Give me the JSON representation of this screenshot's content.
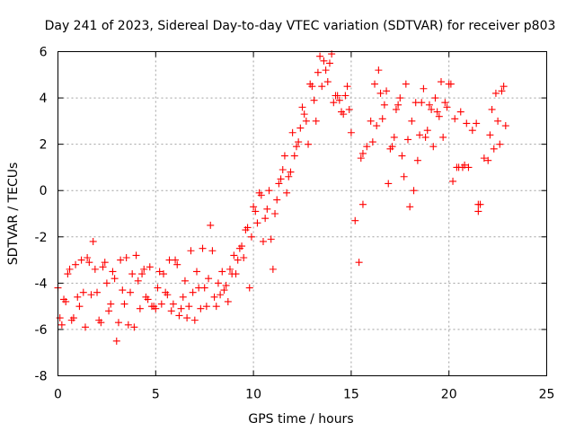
{
  "chart_data": {
    "type": "scatter",
    "title": "Day 241 of 2023, Sidereal Day-to-day VTEC variation (SDTVAR) for receiver p803",
    "xlabel": "GPS time / hours",
    "ylabel": "SDTVAR / TECUs",
    "xlim": [
      0,
      25
    ],
    "ylim": [
      -8,
      6
    ],
    "xticks": [
      "0",
      "5",
      "10",
      "15",
      "20",
      "25"
    ],
    "xtick_values": [
      0,
      5,
      10,
      15,
      20,
      25
    ],
    "yticks": [
      "-8",
      "-6",
      "-4",
      "-2",
      "0",
      "2",
      "4",
      "6"
    ],
    "ytick_values": [
      -8,
      -6,
      -4,
      -2,
      0,
      2,
      4,
      6
    ],
    "grid": true,
    "marker": "+",
    "color": "#ff0000",
    "series": [
      {
        "name": "SDTVAR",
        "x": [
          0.0,
          0.2,
          0.4,
          0.6,
          0.8,
          1.0,
          1.2,
          1.4,
          1.6,
          1.8,
          2.0,
          2.2,
          2.4,
          2.6,
          2.8,
          3.0,
          3.2,
          3.4,
          3.6,
          3.8,
          4.0,
          4.2,
          4.4,
          4.6,
          4.8,
          5.0,
          5.2,
          5.4,
          5.6,
          5.8,
          6.0,
          6.2,
          6.4,
          6.6,
          6.8,
          7.0,
          7.2,
          7.4,
          7.6,
          7.8,
          8.0,
          8.2,
          8.4,
          8.6,
          8.8,
          9.0,
          9.2,
          9.4,
          9.6,
          9.8,
          10.0,
          10.2,
          10.4,
          10.6,
          10.8,
          11.0,
          11.2,
          11.4,
          11.6,
          11.8,
          12.0,
          12.2,
          12.4,
          12.6,
          12.8,
          13.0,
          13.2,
          13.4,
          13.6,
          13.8,
          14.0,
          14.2,
          14.4,
          14.6,
          14.8,
          15.0,
          15.2,
          15.4,
          15.6,
          15.8,
          16.0,
          16.2,
          16.4,
          16.6,
          16.8,
          17.0,
          17.2,
          17.4,
          17.6,
          17.8,
          18.0,
          18.2,
          18.4,
          18.6,
          18.8,
          19.0,
          19.2,
          19.4,
          19.6,
          19.8,
          20.0,
          20.2,
          20.4,
          20.6,
          20.8,
          21.0,
          21.2,
          21.4,
          21.6,
          21.8,
          22.0,
          22.2,
          22.4,
          22.6,
          22.8,
          0.1,
          0.3,
          0.5,
          0.7,
          0.9,
          1.1,
          1.3,
          1.5,
          1.7,
          1.9,
          2.1,
          2.3,
          2.5,
          2.7,
          2.9,
          3.1,
          3.3,
          3.5,
          3.7,
          3.9,
          4.1,
          4.3,
          4.5,
          4.7,
          4.9,
          5.1,
          5.3,
          5.5,
          5.7,
          5.9,
          6.1,
          6.3,
          6.5,
          6.7,
          6.9,
          7.1,
          7.3,
          7.5,
          7.7,
          7.9,
          8.1,
          8.3,
          8.5,
          8.7,
          8.9,
          9.1,
          9.3,
          9.5,
          9.7,
          9.9,
          10.1,
          10.3,
          10.5,
          10.7,
          10.9,
          11.1,
          11.3,
          11.5,
          11.7,
          11.9,
          12.1,
          12.3,
          12.5,
          12.7,
          12.9,
          13.1,
          13.3,
          13.5,
          13.7,
          13.9,
          14.1,
          14.3,
          14.5,
          14.7,
          14.9,
          16.1,
          16.3,
          16.5,
          16.7,
          16.9,
          17.1,
          17.3,
          17.5,
          17.7,
          17.9,
          18.1,
          18.3,
          18.5,
          18.7,
          18.9,
          19.1,
          19.3,
          19.5,
          19.7,
          19.9,
          20.1,
          20.3,
          20.5,
          20.7,
          20.9,
          21.5,
          21.5,
          15.5,
          15.6,
          22.1,
          22.3,
          22.5,
          22.7,
          22.9
        ],
        "y": [
          -4.2,
          -5.8,
          -4.8,
          -3.4,
          -5.5,
          -4.6,
          -3.0,
          -5.9,
          -3.1,
          -2.2,
          -4.4,
          -5.7,
          -3.1,
          -5.2,
          -3.5,
          -6.5,
          -3.0,
          -4.9,
          -5.8,
          -3.6,
          -2.8,
          -5.1,
          -3.4,
          -4.7,
          -5.0,
          -5.1,
          -3.5,
          -3.6,
          -4.5,
          -5.2,
          -3.0,
          -5.4,
          -4.6,
          -5.5,
          -2.6,
          -5.6,
          -4.2,
          -2.5,
          -5.0,
          -1.5,
          -4.6,
          -4.0,
          -3.5,
          -4.1,
          -3.4,
          -2.8,
          -3.0,
          -2.4,
          -1.7,
          -4.2,
          -0.7,
          -1.4,
          -0.2,
          -1.2,
          0.0,
          -3.4,
          -0.4,
          0.5,
          1.5,
          0.6,
          2.5,
          1.9,
          2.7,
          3.3,
          2.0,
          4.5,
          3.0,
          5.8,
          5.6,
          4.7,
          5.9,
          4.1,
          3.9,
          3.3,
          4.5,
          2.5,
          -1.3,
          -3.1,
          -0.6,
          1.9,
          3.0,
          4.6,
          5.2,
          3.1,
          4.3,
          1.8,
          2.3,
          3.7,
          1.5,
          4.6,
          -0.7,
          0.0,
          1.3,
          3.8,
          2.3,
          3.7,
          1.9,
          3.4,
          4.7,
          3.8,
          4.6,
          0.4,
          1.0,
          3.4,
          1.1,
          1.0,
          2.6,
          2.9,
          -0.6,
          1.4,
          1.3,
          3.5,
          4.2,
          2.0,
          4.5,
          -5.5,
          -4.7,
          -3.6,
          -5.6,
          -3.2,
          -5.0,
          -4.4,
          -2.9,
          -4.5,
          -3.4,
          -5.6,
          -3.3,
          -4.0,
          -4.9,
          -3.8,
          -5.7,
          -4.3,
          -2.9,
          -4.4,
          -5.9,
          -3.9,
          -3.6,
          -4.6,
          -3.3,
          -5.0,
          -4.2,
          -4.9,
          -4.4,
          -3.0,
          -4.9,
          -3.2,
          -5.1,
          -3.9,
          -5.0,
          -4.4,
          -3.5,
          -5.1,
          -4.2,
          -3.8,
          -2.6,
          -5.0,
          -4.5,
          -4.3,
          -4.8,
          -3.6,
          -3.6,
          -2.5,
          -2.9,
          -1.6,
          -2.0,
          -0.9,
          -0.1,
          -2.2,
          -0.8,
          -2.1,
          -1.0,
          0.3,
          0.9,
          -0.1,
          0.8,
          1.5,
          2.1,
          3.6,
          3.0,
          4.6,
          3.9,
          5.1,
          4.5,
          5.2,
          5.5,
          3.8,
          4.1,
          3.4,
          4.1,
          3.5,
          2.1,
          2.8,
          4.2,
          3.7,
          0.3,
          1.9,
          3.5,
          4.0,
          0.6,
          2.2,
          3.0,
          3.8,
          2.4,
          4.4,
          2.6,
          3.5,
          4.0,
          3.2,
          2.3,
          3.6,
          4.6,
          3.1,
          1.0,
          1.0,
          2.9,
          -0.9,
          -0.6,
          1.4,
          1.6,
          2.4,
          1.8,
          3.0,
          4.3,
          2.8
        ]
      }
    ]
  }
}
